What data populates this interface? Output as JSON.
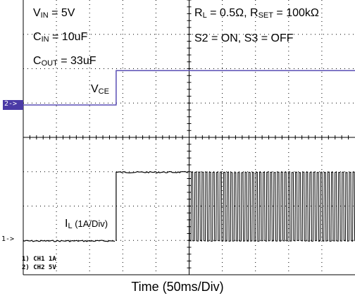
{
  "annotations": {
    "vin_main": "V",
    "vin_sub": "IN",
    "vin_rest": " = 5V",
    "cin_main": "C",
    "cin_sub": "IN",
    "cin_rest": " = 10uF",
    "cout_main": "C",
    "cout_sub": "OUT",
    "cout_rest": " = 33uF",
    "rl_main": "R",
    "rl_sub": "L",
    "rl_rest": " = 0.5Ω, R",
    "rset_sub": "SET",
    "rset_rest": " = 100kΩ",
    "switches": "S2 = ON, S3 = OFF",
    "vce_main": "V",
    "vce_sub": "CE",
    "il_main": "I",
    "il_sub": "L",
    "il_rest": " (1A/Div)"
  },
  "channel_settings": [
    "1) CH1   1A",
    "2) CH2   5V"
  ],
  "markers": {
    "ch2": "2->",
    "ch1": "1->"
  },
  "colors": {
    "vce_trace": "#5a4fb5",
    "il_trace": "#000000",
    "grid": "#000000",
    "ch2_marker_bg": "#4b3aa6"
  },
  "chart_data": {
    "type": "line",
    "xlabel": "Time (50ms/Div)",
    "x_divisions": 10,
    "y_divisions": 8,
    "series": [
      {
        "name": "VCE",
        "channel": 2,
        "scale": "5V/Div",
        "x": [
          0,
          2.8,
          2.8,
          10
        ],
        "y": [
          0,
          0,
          1,
          1
        ]
      },
      {
        "name": "IL",
        "channel": 1,
        "scale": "1A/Div",
        "segments": [
          {
            "x": [
              0,
              2.8
            ],
            "y": [
              0,
              0
            ],
            "style": "flat"
          },
          {
            "x": [
              2.8,
              5.0
            ],
            "y": [
              2,
              2
            ],
            "style": "flat"
          },
          {
            "x": [
              5.0,
              10
            ],
            "high": 2,
            "low": 0,
            "style": "pulsed"
          }
        ]
      }
    ]
  }
}
